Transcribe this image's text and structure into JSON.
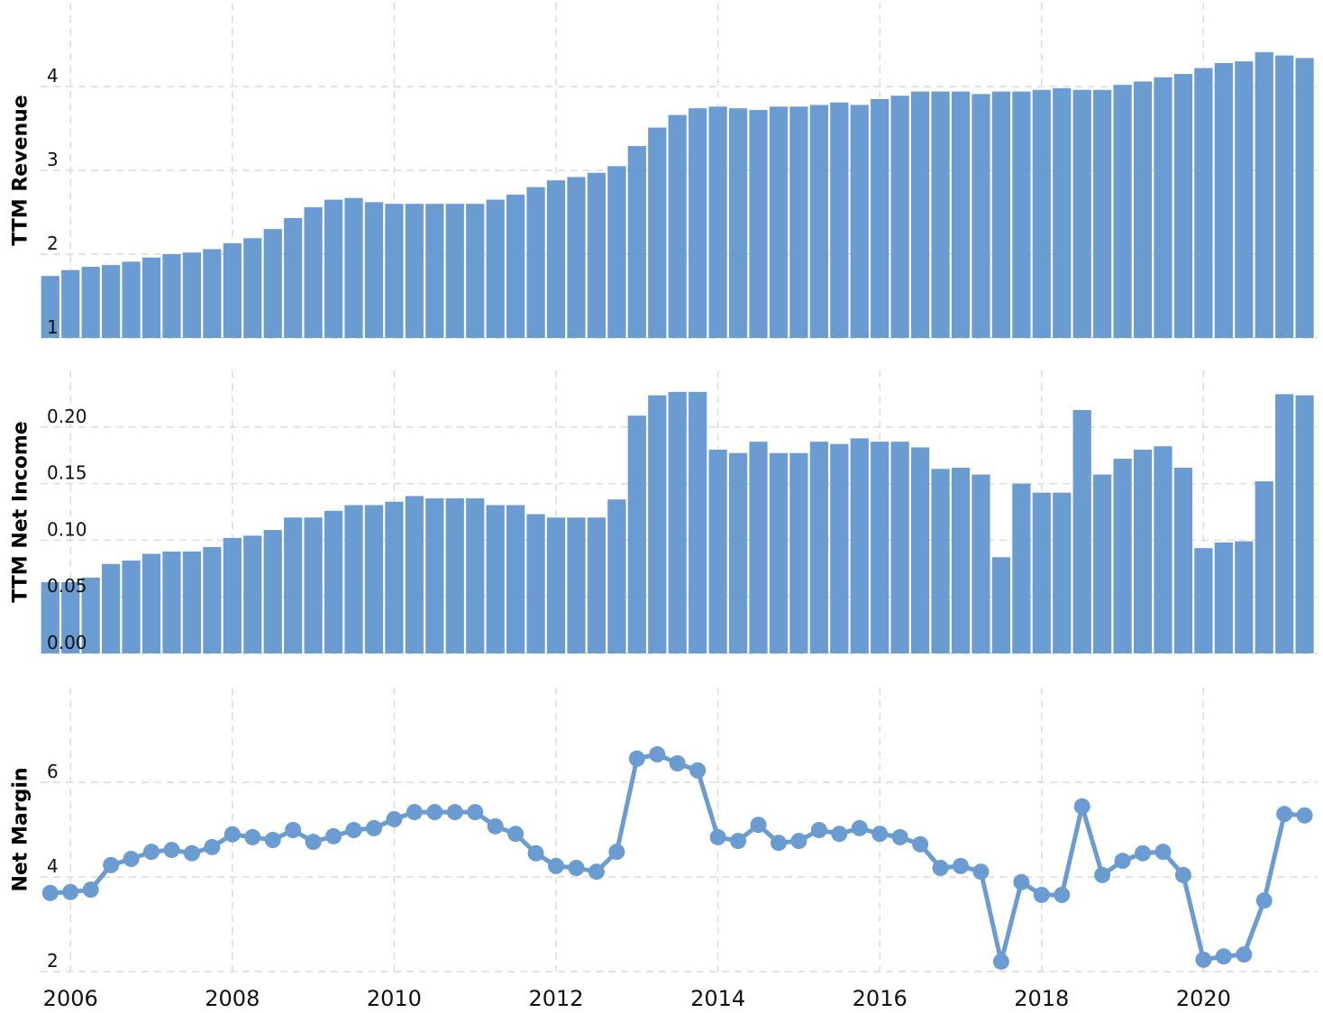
{
  "chart_data": [
    {
      "type": "bar",
      "y_label": "TTM Revenue",
      "color": "#6a9bd1",
      "grid": true,
      "xlim": [
        2005.63,
        2021.41
      ],
      "xticks": [
        2006,
        2008,
        2010,
        2012,
        2014,
        2016,
        2018,
        2020
      ],
      "ylim": [
        1,
        5
      ],
      "yticks": [
        1,
        2,
        3,
        4
      ],
      "x": [
        2005.75,
        2006,
        2006.25,
        2006.5,
        2006.75,
        2007,
        2007.25,
        2007.5,
        2007.75,
        2008,
        2008.25,
        2008.5,
        2008.75,
        2009,
        2009.25,
        2009.5,
        2009.75,
        2010,
        2010.25,
        2010.5,
        2010.75,
        2011,
        2011.25,
        2011.5,
        2011.75,
        2012,
        2012.25,
        2012.5,
        2012.75,
        2013,
        2013.25,
        2013.5,
        2013.75,
        2014,
        2014.25,
        2014.5,
        2014.75,
        2015,
        2015.25,
        2015.5,
        2015.75,
        2016,
        2016.25,
        2016.5,
        2016.75,
        2017,
        2017.25,
        2017.5,
        2017.75,
        2018,
        2018.25,
        2018.5,
        2018.75,
        2019,
        2019.25,
        2019.5,
        2019.75,
        2020,
        2020.25,
        2020.5,
        2020.75,
        2021,
        2021.25
      ],
      "values": [
        1.74,
        1.81,
        1.85,
        1.87,
        1.91,
        1.96,
        2.0,
        2.02,
        2.06,
        2.13,
        2.19,
        2.3,
        2.43,
        2.56,
        2.65,
        2.67,
        2.62,
        2.6,
        2.6,
        2.6,
        2.6,
        2.6,
        2.65,
        2.71,
        2.8,
        2.88,
        2.92,
        2.97,
        3.05,
        3.29,
        3.51,
        3.66,
        3.74,
        3.76,
        3.74,
        3.72,
        3.76,
        3.76,
        3.78,
        3.81,
        3.78,
        3.85,
        3.89,
        3.94,
        3.94,
        3.94,
        3.91,
        3.94,
        3.94,
        3.96,
        3.98,
        3.96,
        3.96,
        4.02,
        4.06,
        4.11,
        4.15,
        4.22,
        4.28,
        4.3,
        4.41,
        4.37,
        4.34
      ]
    },
    {
      "type": "bar",
      "y_label": "TTM Net Income",
      "color": "#6a9bd1",
      "grid": true,
      "xlim": [
        2005.63,
        2021.41
      ],
      "xticks": [
        2006,
        2008,
        2010,
        2012,
        2014,
        2016,
        2018,
        2020
      ],
      "ylim": [
        0,
        0.25
      ],
      "yticks": [
        {
          "value": 0,
          "label": "0.00"
        },
        0.05,
        {
          "value": 0.1,
          "label": "0.10"
        },
        0.15,
        {
          "value": 0.2,
          "label": "0.20"
        }
      ],
      "x": [
        2005.75,
        2006,
        2006.25,
        2006.5,
        2006.75,
        2007,
        2007.25,
        2007.5,
        2007.75,
        2008,
        2008.25,
        2008.5,
        2008.75,
        2009,
        2009.25,
        2009.5,
        2009.75,
        2010,
        2010.25,
        2010.5,
        2010.75,
        2011,
        2011.25,
        2011.5,
        2011.75,
        2012,
        2012.25,
        2012.5,
        2012.75,
        2013,
        2013.25,
        2013.5,
        2013.75,
        2014,
        2014.25,
        2014.5,
        2014.75,
        2015,
        2015.25,
        2015.5,
        2015.75,
        2016,
        2016.25,
        2016.5,
        2016.75,
        2017,
        2017.25,
        2017.5,
        2017.75,
        2018,
        2018.25,
        2018.5,
        2018.75,
        2019,
        2019.25,
        2019.5,
        2019.75,
        2020,
        2020.25,
        2020.5,
        2020.75,
        2021,
        2021.25
      ],
      "values": [
        0.063,
        0.063,
        0.067,
        0.079,
        0.082,
        0.088,
        0.09,
        0.09,
        0.094,
        0.102,
        0.104,
        0.109,
        0.12,
        0.12,
        0.126,
        0.131,
        0.131,
        0.134,
        0.139,
        0.137,
        0.137,
        0.137,
        0.131,
        0.131,
        0.123,
        0.12,
        0.12,
        0.12,
        0.136,
        0.21,
        0.228,
        0.231,
        0.231,
        0.18,
        0.177,
        0.187,
        0.177,
        0.177,
        0.187,
        0.185,
        0.19,
        0.187,
        0.187,
        0.182,
        0.163,
        0.164,
        0.158,
        0.085,
        0.15,
        0.142,
        0.142,
        0.215,
        0.158,
        0.172,
        0.18,
        0.183,
        0.164,
        0.093,
        0.098,
        0.099,
        0.152,
        0.229,
        0.228
      ]
    },
    {
      "type": "line",
      "y_label": "Net Margin",
      "color": "#6a9bd1",
      "grid": true,
      "xlim": [
        2005.63,
        2021.41
      ],
      "xticks": [
        2006,
        2008,
        2010,
        2012,
        2014,
        2016,
        2018,
        2020
      ],
      "ylim": [
        2,
        8
      ],
      "yticks": [
        2,
        4,
        6
      ],
      "x": [
        2005.75,
        2006,
        2006.25,
        2006.5,
        2006.75,
        2007,
        2007.25,
        2007.5,
        2007.75,
        2008,
        2008.25,
        2008.5,
        2008.75,
        2009,
        2009.25,
        2009.5,
        2009.75,
        2010,
        2010.25,
        2010.5,
        2010.75,
        2011,
        2011.25,
        2011.5,
        2011.75,
        2012,
        2012.25,
        2012.5,
        2012.75,
        2013,
        2013.25,
        2013.5,
        2013.75,
        2014,
        2014.25,
        2014.5,
        2014.75,
        2015,
        2015.25,
        2015.5,
        2015.75,
        2016,
        2016.25,
        2016.5,
        2016.75,
        2017,
        2017.25,
        2017.5,
        2017.75,
        2018,
        2018.25,
        2018.5,
        2018.75,
        2019,
        2019.25,
        2019.5,
        2019.75,
        2020,
        2020.25,
        2020.5,
        2020.75,
        2021,
        2021.25
      ],
      "values": [
        3.66,
        3.68,
        3.73,
        4.25,
        4.38,
        4.53,
        4.57,
        4.5,
        4.63,
        4.9,
        4.84,
        4.78,
        4.99,
        4.74,
        4.86,
        4.99,
        5.03,
        5.22,
        5.37,
        5.37,
        5.37,
        5.37,
        5.07,
        4.91,
        4.5,
        4.23,
        4.19,
        4.11,
        4.53,
        6.5,
        6.59,
        6.4,
        6.25,
        4.84,
        4.76,
        5.1,
        4.72,
        4.76,
        4.99,
        4.91,
        5.03,
        4.91,
        4.84,
        4.69,
        4.19,
        4.23,
        4.11,
        2.21,
        3.89,
        3.62,
        3.62,
        5.49,
        4.04,
        4.34,
        4.5,
        4.53,
        4.04,
        2.25,
        2.32,
        2.36,
        3.5,
        5.33,
        5.3
      ]
    }
  ]
}
